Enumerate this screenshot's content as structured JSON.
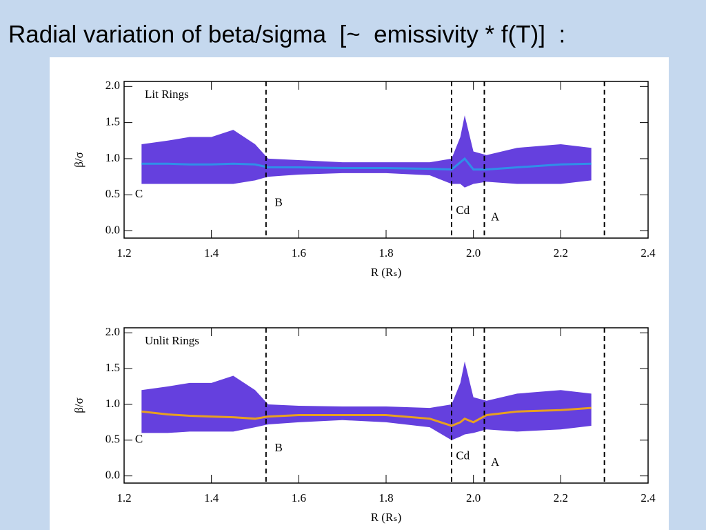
{
  "title": "Radial variation of beta/sigma  [~  emissivity * f(T)]  :",
  "chart_data": [
    {
      "type": "band",
      "label": "Lit Rings",
      "xlabel": "R (Rₛ)",
      "ylabel": "β/σ",
      "xlim": [
        1.2,
        2.4
      ],
      "ylim": [
        -0.1,
        2.07
      ],
      "xticks": [
        1.2,
        1.4,
        1.6,
        1.8,
        {
          "value": 2,
          "label": "2.0"
        },
        2.2,
        2.4
      ],
      "yticks": [
        {
          "value": 0,
          "label": "0.0"
        },
        0.5,
        {
          "value": 1,
          "label": "1.0"
        },
        1.5,
        {
          "value": 2,
          "label": "2.0"
        }
      ],
      "color": "#4a1ed8",
      "center_color": "#2f8fe8",
      "x": [
        1.24,
        1.3,
        1.35,
        1.4,
        1.45,
        1.5,
        1.53,
        1.6,
        1.7,
        1.8,
        1.9,
        1.95,
        1.97,
        1.98,
        2.0,
        2.03,
        2.1,
        2.2,
        2.27
      ],
      "values": [
        0.93,
        0.93,
        0.92,
        0.92,
        0.93,
        0.92,
        0.88,
        0.88,
        0.87,
        0.87,
        0.86,
        0.85,
        0.95,
        1.0,
        0.85,
        0.85,
        0.88,
        0.92,
        0.93
      ],
      "high": [
        1.2,
        1.25,
        1.3,
        1.3,
        1.4,
        1.2,
        1.0,
        0.98,
        0.95,
        0.95,
        0.95,
        1.0,
        1.3,
        1.6,
        1.1,
        1.05,
        1.15,
        1.2,
        1.15
      ],
      "low": [
        0.65,
        0.65,
        0.65,
        0.65,
        0.65,
        0.7,
        0.75,
        0.78,
        0.8,
        0.8,
        0.77,
        0.65,
        0.65,
        0.6,
        0.65,
        0.68,
        0.65,
        0.65,
        0.7
      ],
      "vlines": [
        1.525,
        1.95,
        2.025,
        2.3
      ],
      "annotations": [
        {
          "text": "C",
          "x": 1.225,
          "y": 0.5
        },
        {
          "text": "B",
          "x": 1.545,
          "y": 0.38
        },
        {
          "text": "Cd",
          "x": 1.96,
          "y": 0.27
        },
        {
          "text": "A",
          "x": 2.04,
          "y": 0.18
        }
      ]
    },
    {
      "type": "band",
      "label": "Unlit Rings",
      "xlabel": "R (Rₛ)",
      "ylabel": "β/σ",
      "xlim": [
        1.2,
        2.4
      ],
      "ylim": [
        -0.1,
        2.07
      ],
      "xticks": [
        1.2,
        1.4,
        1.6,
        1.8,
        {
          "value": 2,
          "label": "2.0"
        },
        2.2,
        2.4
      ],
      "yticks": [
        {
          "value": 0,
          "label": "0.0"
        },
        0.5,
        {
          "value": 1,
          "label": "1.0"
        },
        1.5,
        {
          "value": 2,
          "label": "2.0"
        }
      ],
      "color": "#4a1ed8",
      "center_color": "#e8a020",
      "x": [
        1.24,
        1.3,
        1.35,
        1.4,
        1.45,
        1.5,
        1.53,
        1.6,
        1.7,
        1.8,
        1.9,
        1.95,
        1.97,
        1.98,
        2.0,
        2.03,
        2.1,
        2.2,
        2.27
      ],
      "values": [
        0.9,
        0.86,
        0.84,
        0.83,
        0.82,
        0.8,
        0.83,
        0.85,
        0.85,
        0.85,
        0.8,
        0.7,
        0.75,
        0.8,
        0.75,
        0.85,
        0.9,
        0.92,
        0.95
      ],
      "high": [
        1.2,
        1.25,
        1.3,
        1.3,
        1.4,
        1.2,
        1.0,
        0.98,
        0.97,
        0.97,
        0.95,
        1.0,
        1.3,
        1.6,
        1.1,
        1.05,
        1.15,
        1.2,
        1.15
      ],
      "low": [
        0.6,
        0.6,
        0.62,
        0.62,
        0.62,
        0.68,
        0.72,
        0.75,
        0.78,
        0.75,
        0.68,
        0.5,
        0.55,
        0.58,
        0.6,
        0.65,
        0.62,
        0.65,
        0.7
      ],
      "vlines": [
        1.525,
        1.95,
        2.025,
        2.3
      ],
      "annotations": [
        {
          "text": "C",
          "x": 1.225,
          "y": 0.5
        },
        {
          "text": "B",
          "x": 1.545,
          "y": 0.38
        },
        {
          "text": "Cd",
          "x": 1.96,
          "y": 0.27
        },
        {
          "text": "A",
          "x": 2.04,
          "y": 0.18
        }
      ]
    }
  ]
}
